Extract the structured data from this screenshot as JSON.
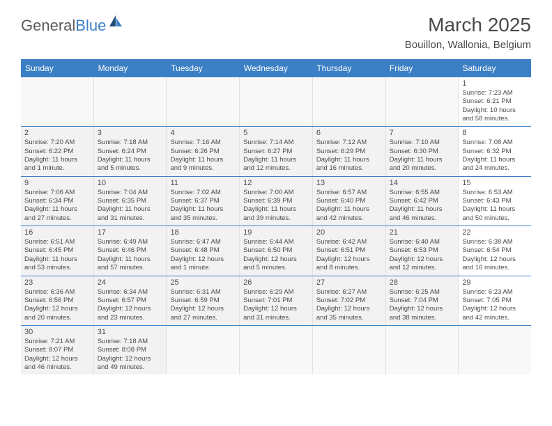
{
  "logo": {
    "part1": "General",
    "part2": "Blue"
  },
  "title": "March 2025",
  "subtitle": "Bouillon, Wallonia, Belgium",
  "colors": {
    "header_bg": "#3b7fc4",
    "header_text": "#ffffff",
    "shaded_bg": "#f2f2f2",
    "cell_border": "#e0e0e0",
    "week_border": "#3b7fc4",
    "text": "#4a4a4a",
    "logo_gray": "#5a5a5a",
    "logo_blue": "#3b7fc4"
  },
  "weekdays": [
    "Sunday",
    "Monday",
    "Tuesday",
    "Wednesday",
    "Thursday",
    "Friday",
    "Saturday"
  ],
  "weeks": [
    [
      {
        "empty": true,
        "shaded": true
      },
      {
        "empty": true,
        "shaded": true
      },
      {
        "empty": true,
        "shaded": true
      },
      {
        "empty": true,
        "shaded": true
      },
      {
        "empty": true,
        "shaded": true
      },
      {
        "empty": true,
        "shaded": true
      },
      {
        "day": "1",
        "sunrise": "Sunrise: 7:23 AM",
        "sunset": "Sunset: 6:21 PM",
        "daylight": "Daylight: 10 hours and 58 minutes."
      }
    ],
    [
      {
        "day": "2",
        "shaded": true,
        "sunrise": "Sunrise: 7:20 AM",
        "sunset": "Sunset: 6:22 PM",
        "daylight": "Daylight: 11 hours and 1 minute."
      },
      {
        "day": "3",
        "shaded": true,
        "sunrise": "Sunrise: 7:18 AM",
        "sunset": "Sunset: 6:24 PM",
        "daylight": "Daylight: 11 hours and 5 minutes."
      },
      {
        "day": "4",
        "shaded": true,
        "sunrise": "Sunrise: 7:16 AM",
        "sunset": "Sunset: 6:26 PM",
        "daylight": "Daylight: 11 hours and 9 minutes."
      },
      {
        "day": "5",
        "shaded": true,
        "sunrise": "Sunrise: 7:14 AM",
        "sunset": "Sunset: 6:27 PM",
        "daylight": "Daylight: 11 hours and 12 minutes."
      },
      {
        "day": "6",
        "shaded": true,
        "sunrise": "Sunrise: 7:12 AM",
        "sunset": "Sunset: 6:29 PM",
        "daylight": "Daylight: 11 hours and 16 minutes."
      },
      {
        "day": "7",
        "shaded": true,
        "sunrise": "Sunrise: 7:10 AM",
        "sunset": "Sunset: 6:30 PM",
        "daylight": "Daylight: 11 hours and 20 minutes."
      },
      {
        "day": "8",
        "sunrise": "Sunrise: 7:08 AM",
        "sunset": "Sunset: 6:32 PM",
        "daylight": "Daylight: 11 hours and 24 minutes."
      }
    ],
    [
      {
        "day": "9",
        "shaded": true,
        "sunrise": "Sunrise: 7:06 AM",
        "sunset": "Sunset: 6:34 PM",
        "daylight": "Daylight: 11 hours and 27 minutes."
      },
      {
        "day": "10",
        "shaded": true,
        "sunrise": "Sunrise: 7:04 AM",
        "sunset": "Sunset: 6:35 PM",
        "daylight": "Daylight: 11 hours and 31 minutes."
      },
      {
        "day": "11",
        "shaded": true,
        "sunrise": "Sunrise: 7:02 AM",
        "sunset": "Sunset: 6:37 PM",
        "daylight": "Daylight: 11 hours and 35 minutes."
      },
      {
        "day": "12",
        "shaded": true,
        "sunrise": "Sunrise: 7:00 AM",
        "sunset": "Sunset: 6:39 PM",
        "daylight": "Daylight: 11 hours and 39 minutes."
      },
      {
        "day": "13",
        "shaded": true,
        "sunrise": "Sunrise: 6:57 AM",
        "sunset": "Sunset: 6:40 PM",
        "daylight": "Daylight: 11 hours and 42 minutes."
      },
      {
        "day": "14",
        "shaded": true,
        "sunrise": "Sunrise: 6:55 AM",
        "sunset": "Sunset: 6:42 PM",
        "daylight": "Daylight: 11 hours and 46 minutes."
      },
      {
        "day": "15",
        "sunrise": "Sunrise: 6:53 AM",
        "sunset": "Sunset: 6:43 PM",
        "daylight": "Daylight: 11 hours and 50 minutes."
      }
    ],
    [
      {
        "day": "16",
        "shaded": true,
        "sunrise": "Sunrise: 6:51 AM",
        "sunset": "Sunset: 6:45 PM",
        "daylight": "Daylight: 11 hours and 53 minutes."
      },
      {
        "day": "17",
        "shaded": true,
        "sunrise": "Sunrise: 6:49 AM",
        "sunset": "Sunset: 6:46 PM",
        "daylight": "Daylight: 11 hours and 57 minutes."
      },
      {
        "day": "18",
        "shaded": true,
        "sunrise": "Sunrise: 6:47 AM",
        "sunset": "Sunset: 6:48 PM",
        "daylight": "Daylight: 12 hours and 1 minute."
      },
      {
        "day": "19",
        "shaded": true,
        "sunrise": "Sunrise: 6:44 AM",
        "sunset": "Sunset: 6:50 PM",
        "daylight": "Daylight: 12 hours and 5 minutes."
      },
      {
        "day": "20",
        "shaded": true,
        "sunrise": "Sunrise: 6:42 AM",
        "sunset": "Sunset: 6:51 PM",
        "daylight": "Daylight: 12 hours and 8 minutes."
      },
      {
        "day": "21",
        "shaded": true,
        "sunrise": "Sunrise: 6:40 AM",
        "sunset": "Sunset: 6:53 PM",
        "daylight": "Daylight: 12 hours and 12 minutes."
      },
      {
        "day": "22",
        "sunrise": "Sunrise: 6:38 AM",
        "sunset": "Sunset: 6:54 PM",
        "daylight": "Daylight: 12 hours and 16 minutes."
      }
    ],
    [
      {
        "day": "23",
        "shaded": true,
        "sunrise": "Sunrise: 6:36 AM",
        "sunset": "Sunset: 6:56 PM",
        "daylight": "Daylight: 12 hours and 20 minutes."
      },
      {
        "day": "24",
        "shaded": true,
        "sunrise": "Sunrise: 6:34 AM",
        "sunset": "Sunset: 6:57 PM",
        "daylight": "Daylight: 12 hours and 23 minutes."
      },
      {
        "day": "25",
        "shaded": true,
        "sunrise": "Sunrise: 6:31 AM",
        "sunset": "Sunset: 6:59 PM",
        "daylight": "Daylight: 12 hours and 27 minutes."
      },
      {
        "day": "26",
        "shaded": true,
        "sunrise": "Sunrise: 6:29 AM",
        "sunset": "Sunset: 7:01 PM",
        "daylight": "Daylight: 12 hours and 31 minutes."
      },
      {
        "day": "27",
        "shaded": true,
        "sunrise": "Sunrise: 6:27 AM",
        "sunset": "Sunset: 7:02 PM",
        "daylight": "Daylight: 12 hours and 35 minutes."
      },
      {
        "day": "28",
        "shaded": true,
        "sunrise": "Sunrise: 6:25 AM",
        "sunset": "Sunset: 7:04 PM",
        "daylight": "Daylight: 12 hours and 38 minutes."
      },
      {
        "day": "29",
        "sunrise": "Sunrise: 6:23 AM",
        "sunset": "Sunset: 7:05 PM",
        "daylight": "Daylight: 12 hours and 42 minutes."
      }
    ],
    [
      {
        "day": "30",
        "shaded": true,
        "sunrise": "Sunrise: 7:21 AM",
        "sunset": "Sunset: 8:07 PM",
        "daylight": "Daylight: 12 hours and 46 minutes."
      },
      {
        "day": "31",
        "shaded": true,
        "sunrise": "Sunrise: 7:18 AM",
        "sunset": "Sunset: 8:08 PM",
        "daylight": "Daylight: 12 hours and 49 minutes."
      },
      {
        "empty": true
      },
      {
        "empty": true
      },
      {
        "empty": true
      },
      {
        "empty": true
      },
      {
        "empty": true
      }
    ]
  ]
}
